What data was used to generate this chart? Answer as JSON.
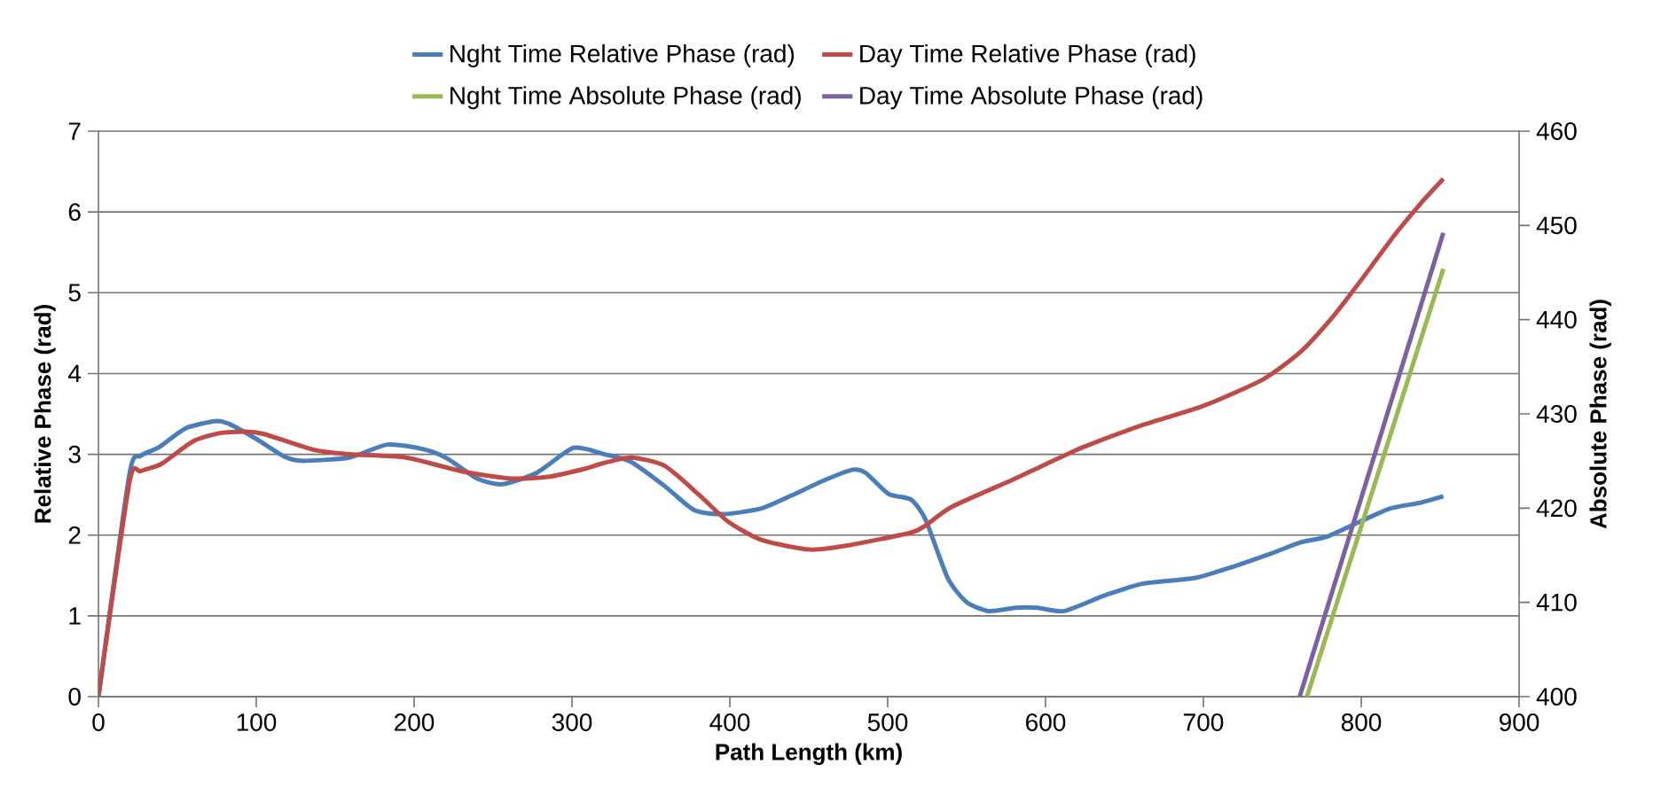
{
  "chart_data": {
    "type": "line",
    "xlabel": "Path Length (km)",
    "ylabel": "Relative Phase (rad)",
    "y2label": "Absolute Phase (rad)",
    "xlim": [
      0,
      900
    ],
    "xticks": [
      0,
      100,
      200,
      300,
      400,
      500,
      600,
      700,
      800,
      900
    ],
    "ylim": [
      0,
      7
    ],
    "yticks": [
      0,
      1,
      2,
      3,
      4,
      5,
      6,
      7
    ],
    "y2lim": [
      400,
      460
    ],
    "y2ticks": [
      400,
      410,
      420,
      430,
      440,
      450,
      460
    ],
    "grid": "y",
    "legend": "top",
    "marker": "none",
    "line_style": "solid",
    "series": [
      {
        "name": "Nght Time Relative Phase (rad)",
        "color": "#4a7ebb",
        "x": [
          0,
          19.6,
          26.7,
          38.6,
          55,
          74,
          83.5,
          100,
          117,
          128.5,
          159,
          183,
          206.6,
          220.8,
          240,
          256,
          277.6,
          301,
          320.6,
          337,
          358.5,
          377.4,
          396.3,
          420,
          439,
          460,
          478,
          486,
          500.5,
          514.7,
          524,
          538,
          550,
          564,
          581,
          595,
          611.7,
          638.4,
          662,
          695,
          719,
          742.7,
          761.6,
          778,
          799.5,
          818.5,
          837.4,
          852
        ],
        "values": [
          0,
          2.75,
          2.98,
          3.09,
          3.32,
          3.41,
          3.37,
          3.19,
          2.98,
          2.92,
          2.96,
          3.12,
          3.06,
          2.95,
          2.7,
          2.63,
          2.77,
          3.08,
          3.0,
          2.91,
          2.61,
          2.31,
          2.26,
          2.33,
          2.49,
          2.68,
          2.81,
          2.77,
          2.51,
          2.44,
          2.19,
          1.47,
          1.17,
          1.06,
          1.1,
          1.1,
          1.06,
          1.26,
          1.4,
          1.47,
          1.61,
          1.77,
          1.91,
          1.98,
          2.17,
          2.33,
          2.4,
          2.48
        ]
      },
      {
        "name": "Day Time Relative Phase (rad)",
        "color": "#be4b48",
        "x": [
          0,
          19.6,
          26.7,
          39.8,
          59.9,
          76.4,
          93,
          105,
          135.6,
          159,
          194.8,
          230,
          261,
          284.7,
          308,
          318,
          337,
          358.5,
          379.8,
          398.7,
          420,
          450.8,
          474.4,
          514.7,
          524,
          540.7,
          578.6,
          600.5,
          624,
          659.7,
          700,
          738,
          761.6,
          780.6,
          797,
          821,
          837.4,
          852
        ],
        "values": [
          0,
          2.65,
          2.79,
          2.88,
          3.16,
          3.26,
          3.28,
          3.25,
          3.06,
          3.0,
          2.96,
          2.79,
          2.7,
          2.72,
          2.82,
          2.88,
          2.96,
          2.86,
          2.51,
          2.17,
          1.94,
          1.82,
          1.87,
          2.03,
          2.12,
          2.35,
          2.68,
          2.88,
          3.09,
          3.35,
          3.6,
          3.93,
          4.27,
          4.67,
          5.08,
          5.71,
          6.1,
          6.41
        ]
      },
      {
        "name": "Nght Time Absolute Phase (rad)",
        "color": "#98b954",
        "axis": "y2",
        "x": [
          765.6,
          852
        ],
        "values": [
          400,
          445.4
        ]
      },
      {
        "name": "Day Time Absolute Phase (rad)",
        "color": "#7d60a0",
        "axis": "y2",
        "x": [
          761,
          852
        ],
        "values": [
          400,
          449.2
        ]
      }
    ]
  }
}
